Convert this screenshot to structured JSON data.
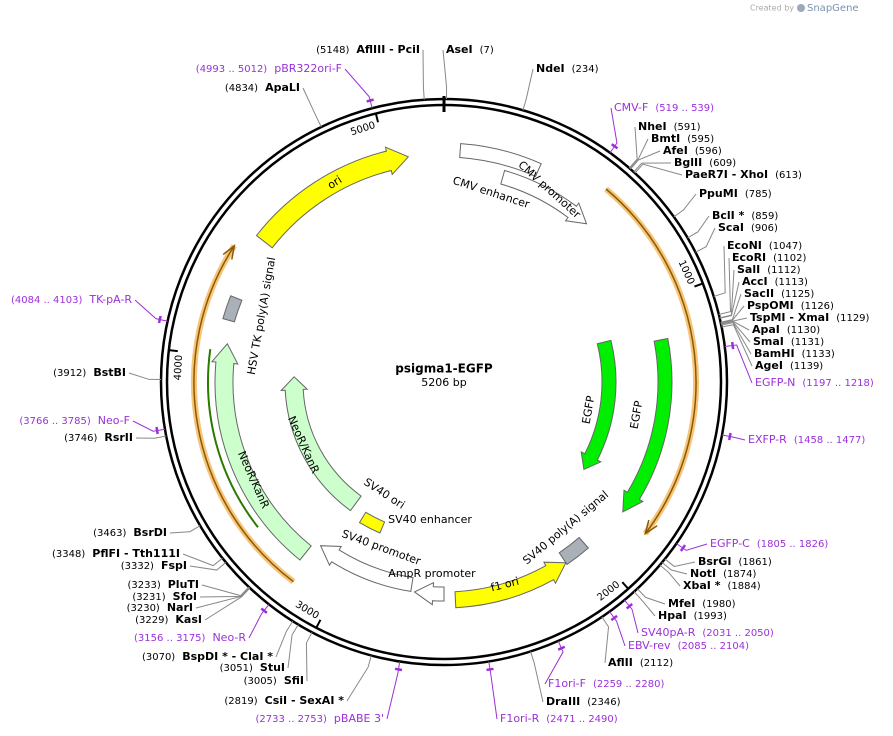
{
  "header": {
    "created": "Created by",
    "brand": "SnapGene"
  },
  "map": {
    "title": "psigma1-EGFP",
    "subtitle": "5206 bp",
    "ring_ticks": [
      1000,
      2000,
      3000,
      4000,
      5000
    ],
    "features": [
      "ori",
      "CMV enhancer",
      "CMV promoter",
      "EGFP",
      "EGFP",
      "SV40 poly(A) signal",
      "f1 ori",
      "AmpR promoter",
      "SV40 promoter",
      "SV40 enhancer",
      "SV40 ori",
      "NeoR/KanR",
      "NeoR/KanR",
      "HSV TK poly(A) signal"
    ],
    "sites": [
      {
        "name": "AflIII  - PciI",
        "position": "(5148)"
      },
      {
        "name": "AseI",
        "position": "(7)"
      },
      {
        "name": "NdeI",
        "position": "(234)"
      },
      {
        "name": "NheI",
        "position": "(591)"
      },
      {
        "name": "BmtI",
        "position": "(595)"
      },
      {
        "name": "AfeI",
        "position": "(596)"
      },
      {
        "name": "BglII",
        "position": "(609)"
      },
      {
        "name": "PaeR7I  - XhoI",
        "position": "(613)"
      },
      {
        "name": "PpuMI",
        "position": "(785)"
      },
      {
        "name": "BclI *",
        "position": "(859)"
      },
      {
        "name": "ScaI",
        "position": "(906)"
      },
      {
        "name": "EcoNI",
        "position": "(1047)"
      },
      {
        "name": "EcoRI",
        "position": "(1102)"
      },
      {
        "name": "SalI",
        "position": "(1112)"
      },
      {
        "name": "AccI",
        "position": "(1113)"
      },
      {
        "name": "SacII",
        "position": "(1125)"
      },
      {
        "name": "PspOMI",
        "position": "(1126)"
      },
      {
        "name": "TspMI  - XmaI",
        "position": "(1129)"
      },
      {
        "name": "ApaI",
        "position": "(1130)"
      },
      {
        "name": "SmaI",
        "position": "(1131)"
      },
      {
        "name": "BamHI",
        "position": "(1133)"
      },
      {
        "name": "AgeI",
        "position": "(1139)"
      },
      {
        "name": "BsrGI",
        "position": "(1861)"
      },
      {
        "name": "NotI",
        "position": "(1874)"
      },
      {
        "name": "XbaI *",
        "position": "(1884)"
      },
      {
        "name": "MfeI",
        "position": "(1980)"
      },
      {
        "name": "HpaI",
        "position": "(1993)"
      },
      {
        "name": "AflII",
        "position": "(2112)"
      },
      {
        "name": "DraIII",
        "position": "(2346)"
      },
      {
        "name": "ApaLI",
        "position": "(4834)"
      },
      {
        "name": "BstBI",
        "position": "(3912)"
      },
      {
        "name": "RsrII",
        "position": "(3746)"
      },
      {
        "name": "BsrDI",
        "position": "(3463)"
      },
      {
        "name": "PflFI  - Tth111I",
        "position": "(3348)"
      },
      {
        "name": "FspI",
        "position": "(3332)"
      },
      {
        "name": "PluTI",
        "position": "(3233)"
      },
      {
        "name": "SfoI",
        "position": "(3231)"
      },
      {
        "name": "NarI",
        "position": "(3230)"
      },
      {
        "name": "KasI",
        "position": "(3229)"
      },
      {
        "name": "BspDI *  - ClaI *",
        "position": "(3070)"
      },
      {
        "name": "StuI",
        "position": "(3051)"
      },
      {
        "name": "SfiI",
        "position": "(3005)"
      },
      {
        "name": "CsiI  - SexAI *",
        "position": "(2819)"
      }
    ],
    "primers": [
      {
        "name": "pBR322ori-F",
        "range": "(4993 .. 5012)"
      },
      {
        "name": "CMV-F",
        "range": "(519 .. 539)"
      },
      {
        "name": "EGFP-N",
        "range": "(1197 .. 1218)"
      },
      {
        "name": "EXFP-R",
        "range": "(1458 .. 1477)"
      },
      {
        "name": "EGFP-C",
        "range": "(1805 .. 1826)"
      },
      {
        "name": "SV40pA-R",
        "range": "(2031 .. 2050)"
      },
      {
        "name": "EBV-rev",
        "range": "(2085 .. 2104)"
      },
      {
        "name": "F1ori-F",
        "range": "(2259 .. 2280)"
      },
      {
        "name": "F1ori-R",
        "range": "(2471 .. 2490)"
      },
      {
        "name": "pBABE 3'",
        "range": "(2733 .. 2753)"
      },
      {
        "name": "Neo-R",
        "range": "(3156 .. 3175)"
      },
      {
        "name": "Neo-F",
        "range": "(3766 .. 3785)"
      },
      {
        "name": "TK-pA-R",
        "range": "(4084 .. 4103)"
      }
    ]
  }
}
